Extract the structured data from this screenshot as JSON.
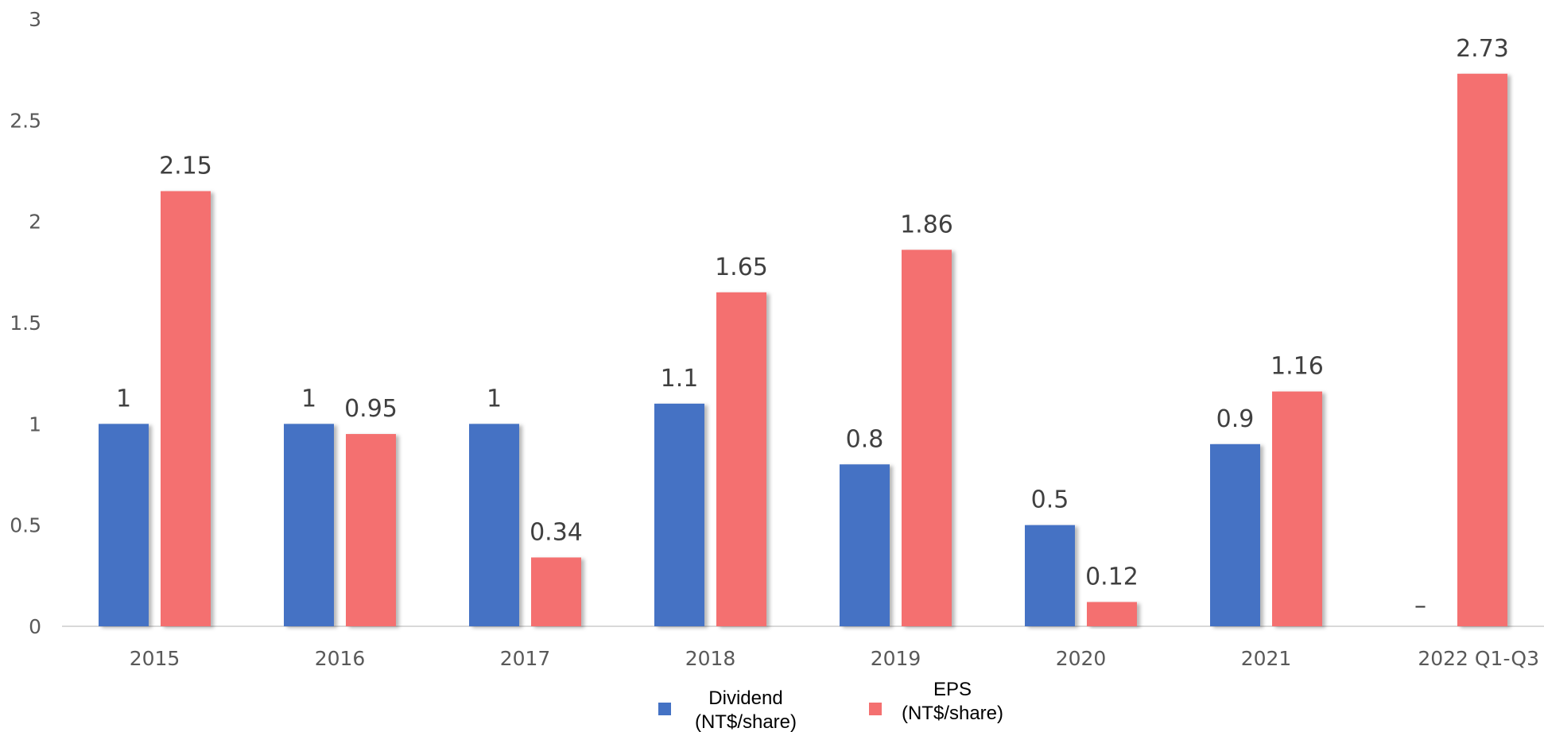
{
  "chart_data": {
    "type": "bar",
    "title": "",
    "xlabel": "",
    "ylabel": "",
    "categories": [
      "2015",
      "2016",
      "2017",
      "2018",
      "2019",
      "2020",
      "2021",
      "2022 Q1-Q3"
    ],
    "series": [
      {
        "name": "Dividend (NT$/share)",
        "legend_lines": [
          "Dividend",
          "(NT$/share)"
        ],
        "color": "#4472C4",
        "values": [
          1,
          1,
          1,
          1.1,
          0.8,
          0.5,
          0.9,
          null
        ],
        "labels": [
          "1",
          "1",
          "1",
          "1.1",
          "0.8",
          "0.5",
          "0.9",
          "–"
        ]
      },
      {
        "name": "EPS (NT$/share)",
        "legend_lines": [
          "EPS",
          "(NT$/share)"
        ],
        "color": "#F47070",
        "values": [
          2.15,
          0.95,
          0.34,
          1.65,
          1.86,
          0.12,
          1.16,
          2.73
        ],
        "labels": [
          "2.15",
          "0.95",
          "0.34",
          "1.65",
          "1.86",
          "0.12",
          "1.16",
          "2.73"
        ]
      }
    ],
    "ylim": [
      0,
      3
    ],
    "yticks": [
      "0",
      "0.5",
      "1",
      "1.5",
      "2",
      "2.5",
      "3"
    ],
    "grid": false,
    "legend_position": "bottom-center"
  }
}
